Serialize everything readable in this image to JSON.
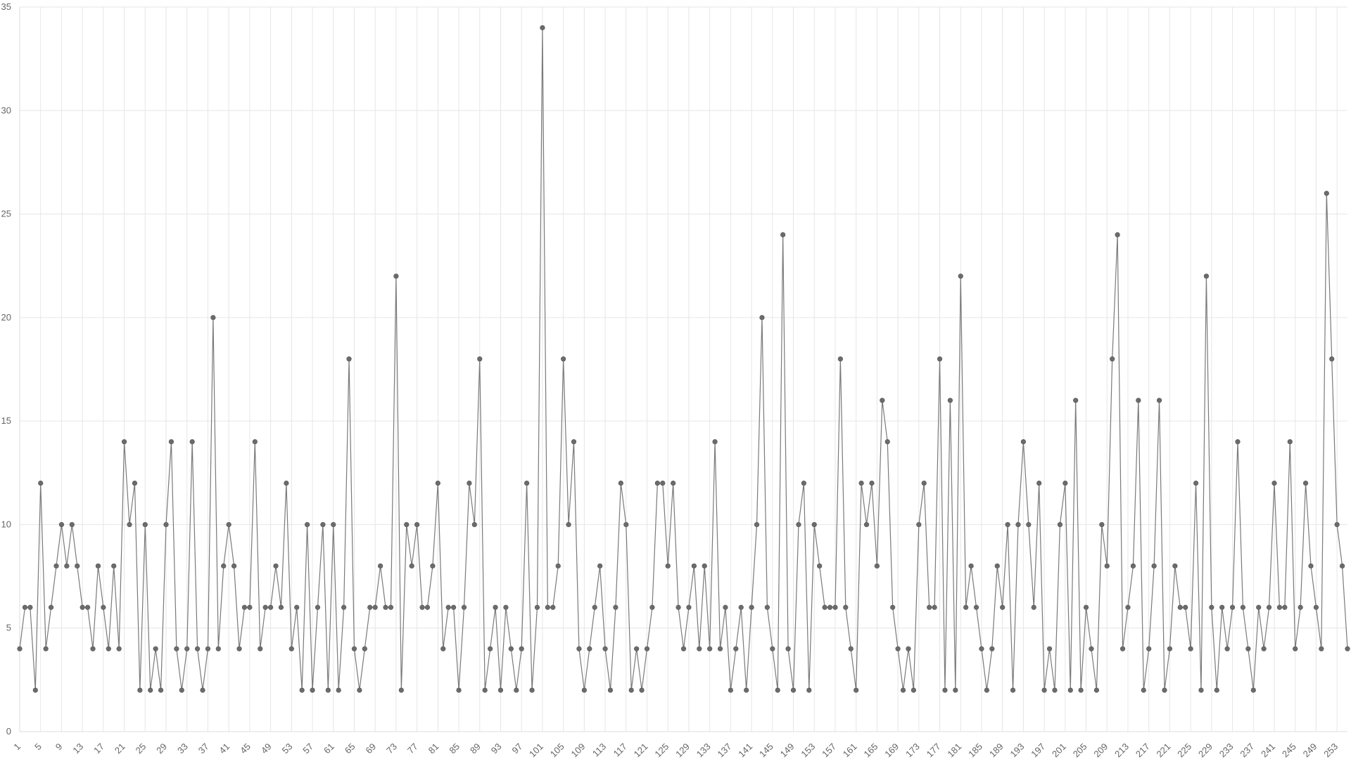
{
  "chart_data": {
    "type": "line",
    "title": "",
    "xlabel": "",
    "ylabel": "",
    "ylim": [
      0,
      35
    ],
    "yticks": [
      0,
      5,
      10,
      15,
      20,
      25,
      30,
      35
    ],
    "x_start": 1,
    "x_end": 256,
    "x_tick_every": 4,
    "grid": true,
    "legend": "none",
    "colors": {
      "line": "#7a7a7a",
      "point": "#6b6b6b",
      "grid": "#e6e6e6",
      "text": "#666666"
    },
    "series": [
      {
        "values": [
          4,
          6,
          6,
          2,
          12,
          4,
          6,
          8,
          10,
          8,
          10,
          8,
          6,
          6,
          4,
          8,
          6,
          4,
          8,
          4,
          14,
          10,
          12,
          2,
          10,
          2,
          4,
          2,
          10,
          14,
          4,
          2,
          4,
          14,
          4,
          2,
          4,
          20,
          4,
          8,
          10,
          8,
          4,
          6,
          6,
          14,
          4,
          6,
          6,
          8,
          6,
          12,
          4,
          6,
          2,
          10,
          2,
          6,
          10,
          2,
          10,
          2,
          6,
          18,
          4,
          2,
          4,
          6,
          6,
          8,
          6,
          6,
          22,
          2,
          10,
          8,
          10,
          6,
          6,
          8,
          12,
          4,
          6,
          6,
          2,
          6,
          12,
          10,
          18,
          2,
          4,
          6,
          2,
          6,
          4,
          2,
          4,
          12,
          2,
          6,
          34,
          6,
          6,
          8,
          18,
          10,
          14,
          4,
          2,
          4,
          6,
          8,
          4,
          2,
          6,
          12,
          10,
          2,
          4,
          2,
          4,
          6,
          12,
          12,
          8,
          12,
          6,
          4,
          6,
          8,
          4,
          8,
          4,
          14,
          4,
          6,
          2,
          4,
          6,
          2,
          6,
          10,
          20,
          6,
          4,
          2,
          24,
          4,
          2,
          10,
          12,
          2,
          10,
          8,
          6,
          6,
          6,
          18,
          6,
          4,
          2,
          12,
          10,
          12,
          8,
          16,
          14,
          6,
          4,
          2,
          4,
          2,
          10,
          12,
          6,
          6,
          18,
          2,
          16,
          2,
          22,
          6,
          8,
          6,
          4,
          2,
          4,
          8,
          6,
          10,
          2,
          10,
          14,
          10,
          6,
          12,
          2,
          4,
          2,
          10,
          12,
          2,
          16,
          2,
          6,
          4,
          2,
          10,
          8,
          18,
          24,
          4,
          6,
          8,
          16,
          2,
          4,
          8,
          16,
          2,
          4,
          8,
          6,
          6,
          4,
          12,
          2,
          22,
          6,
          2,
          6,
          4,
          6,
          14,
          6,
          4,
          2,
          6,
          4,
          6,
          12,
          6,
          6,
          14,
          4,
          6,
          12,
          8,
          6,
          4,
          26,
          18,
          10,
          8,
          4
        ]
      }
    ]
  }
}
